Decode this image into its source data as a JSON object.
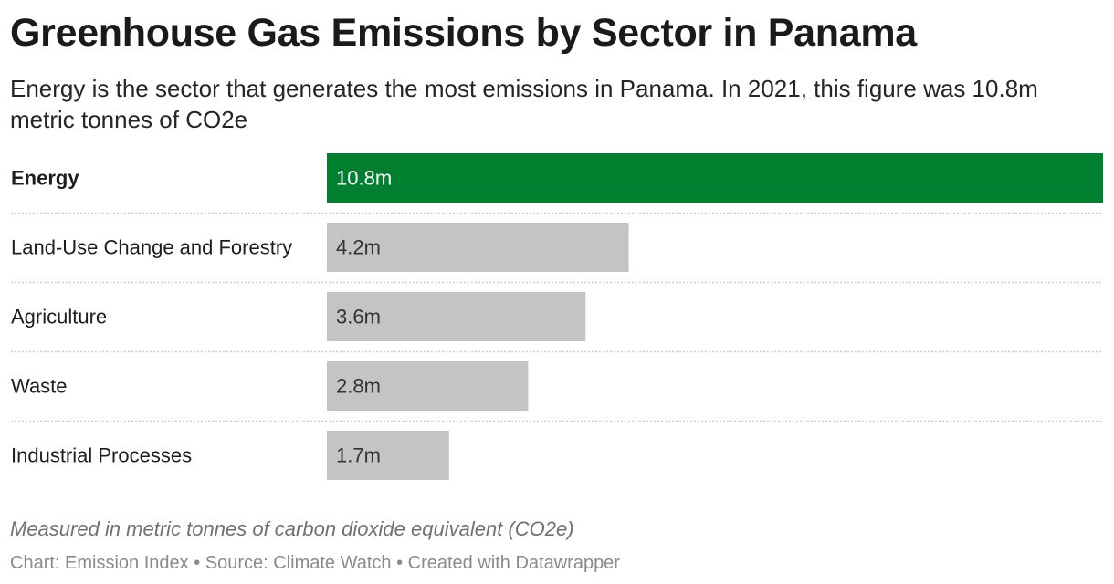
{
  "header": {
    "title": "Greenhouse Gas Emissions by Sector in Panama",
    "subtitle": "Energy is the sector that generates the most emissions in Panama. In 2021, this figure was 10.8m metric tonnes of CO2e"
  },
  "chart_data": {
    "type": "bar",
    "orientation": "horizontal",
    "categories": [
      "Energy",
      "Land-Use Change and Forestry",
      "Agriculture",
      "Waste",
      "Industrial Processes"
    ],
    "values": [
      10.8,
      4.2,
      3.6,
      2.8,
      1.7
    ],
    "value_labels": [
      "10.8m",
      "4.2m",
      "3.6m",
      "2.8m",
      "1.7m"
    ],
    "highlighted_category": "Energy",
    "xlim": [
      0,
      10.8
    ],
    "grid": false,
    "colors": {
      "highlight": "#00802f",
      "default": "#c4c4c4",
      "highlight_label": "#ffffff",
      "default_label": "#333333",
      "separator": "#cccccc"
    }
  },
  "notes": "Measured in metric tonnes of carbon dioxide equivalent (CO2e)",
  "footer": "Chart: Emission Index • Source: Climate Watch • Created with Datawrapper"
}
